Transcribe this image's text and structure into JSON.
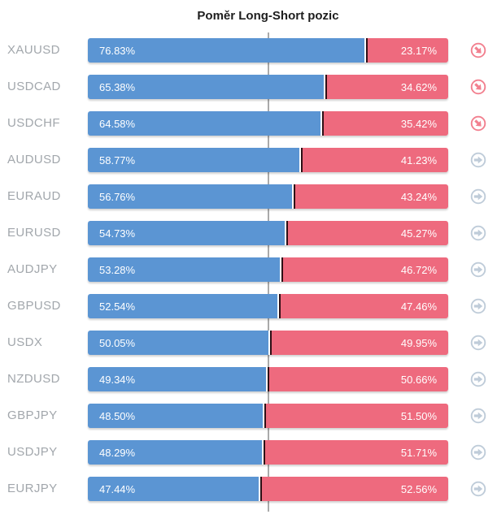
{
  "title": "Poměr Long-Short pozic",
  "colors": {
    "long": "#5b95d3",
    "short": "#ee6a7e",
    "separator_dark": "#2e0f15",
    "label_gray": "#a2a7ac",
    "grid_line": "#aaaaaa",
    "icon_red": "#f2808f",
    "icon_gray": "#bfccd9"
  },
  "chart_data": {
    "type": "bar",
    "orientation": "horizontal",
    "stacked": true,
    "title": "Poměr Long-Short pozic",
    "series": [
      "Long %",
      "Short %"
    ],
    "midline_percent": 50,
    "xlim": [
      0,
      100
    ],
    "rows": [
      {
        "symbol": "XAUUSD",
        "long": 76.83,
        "short": 23.17,
        "long_label": "76.83%",
        "short_label": "23.17%",
        "icon": "trend-down"
      },
      {
        "symbol": "USDCAD",
        "long": 65.38,
        "short": 34.62,
        "long_label": "65.38%",
        "short_label": "34.62%",
        "icon": "trend-down"
      },
      {
        "symbol": "USDCHF",
        "long": 64.58,
        "short": 35.42,
        "long_label": "64.58%",
        "short_label": "35.42%",
        "icon": "trend-down"
      },
      {
        "symbol": "AUDUSD",
        "long": 58.77,
        "short": 41.23,
        "long_label": "58.77%",
        "short_label": "41.23%",
        "icon": "trend-right"
      },
      {
        "symbol": "EURAUD",
        "long": 56.76,
        "short": 43.24,
        "long_label": "56.76%",
        "short_label": "43.24%",
        "icon": "trend-right"
      },
      {
        "symbol": "EURUSD",
        "long": 54.73,
        "short": 45.27,
        "long_label": "54.73%",
        "short_label": "45.27%",
        "icon": "trend-right"
      },
      {
        "symbol": "AUDJPY",
        "long": 53.28,
        "short": 46.72,
        "long_label": "53.28%",
        "short_label": "46.72%",
        "icon": "trend-right"
      },
      {
        "symbol": "GBPUSD",
        "long": 52.54,
        "short": 47.46,
        "long_label": "52.54%",
        "short_label": "47.46%",
        "icon": "trend-right"
      },
      {
        "symbol": "USDX",
        "long": 50.05,
        "short": 49.95,
        "long_label": "50.05%",
        "short_label": "49.95%",
        "icon": "trend-right"
      },
      {
        "symbol": "NZDUSD",
        "long": 49.34,
        "short": 50.66,
        "long_label": "49.34%",
        "short_label": "50.66%",
        "icon": "trend-right"
      },
      {
        "symbol": "GBPJPY",
        "long": 48.5,
        "short": 51.5,
        "long_label": "48.50%",
        "short_label": "51.50%",
        "icon": "trend-right"
      },
      {
        "symbol": "USDJPY",
        "long": 48.29,
        "short": 51.71,
        "long_label": "48.29%",
        "short_label": "51.71%",
        "icon": "trend-right"
      },
      {
        "symbol": "EURJPY",
        "long": 47.44,
        "short": 52.56,
        "long_label": "47.44%",
        "short_label": "52.56%",
        "icon": "trend-right"
      }
    ]
  }
}
